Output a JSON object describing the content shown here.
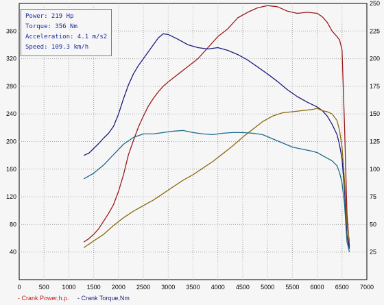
{
  "info": {
    "power": "Power: 219 Hp",
    "torque": "Torque: 356 Nm",
    "acceleration": "Acceleration: 4.1 m/s2",
    "speed": "Speed: 109.3 km/h"
  },
  "legend": {
    "power_label": "- Crank Power,h.p.",
    "torque_label": "- Crank Torque,Nm"
  },
  "chart_data": {
    "type": "line",
    "title": "",
    "xlabel": "",
    "ylabel": "",
    "xlim": [
      0,
      7000
    ],
    "ylim_left": [
      0,
      400
    ],
    "ylim_right": [
      0,
      250
    ],
    "x_ticks": [
      0,
      500,
      1000,
      1500,
      2000,
      2500,
      3000,
      3500,
      4000,
      4500,
      5000,
      5500,
      6000,
      6500,
      7000
    ],
    "y_ticks_left": [
      40,
      80,
      120,
      160,
      200,
      240,
      280,
      320,
      360
    ],
    "y_ticks_right": [
      25,
      50,
      75,
      100,
      125,
      150,
      175,
      200,
      225,
      250
    ],
    "grid": true,
    "legend_position": "bottom-left",
    "series": [
      {
        "name": "Crank Power,h.p.",
        "axis": "right",
        "color": "#9a1a1a",
        "x": [
          1300,
          1400,
          1500,
          1600,
          1700,
          1800,
          1900,
          2000,
          2100,
          2200,
          2300,
          2400,
          2500,
          2600,
          2700,
          2800,
          2900,
          3000,
          3200,
          3400,
          3600,
          3800,
          4000,
          4200,
          4400,
          4600,
          4800,
          5000,
          5200,
          5400,
          5600,
          5800,
          6000,
          6100,
          6200,
          6300,
          6400,
          6450,
          6500,
          6550,
          6600,
          6650
        ],
        "values": [
          34,
          37,
          41,
          46,
          53,
          60,
          68,
          80,
          95,
          113,
          126,
          138,
          148,
          157,
          164,
          170,
          175,
          179,
          186,
          193,
          200,
          210,
          220,
          227,
          237,
          242,
          246,
          248,
          247,
          243,
          241,
          242,
          241,
          238,
          233,
          225,
          220,
          217,
          208,
          140,
          60,
          30
        ]
      },
      {
        "name": "Crank Torque,Nm",
        "axis": "left",
        "color": "#1a1a80",
        "x": [
          1300,
          1400,
          1500,
          1600,
          1700,
          1800,
          1900,
          2000,
          2100,
          2200,
          2300,
          2400,
          2500,
          2600,
          2700,
          2800,
          2900,
          3000,
          3200,
          3400,
          3600,
          3800,
          4000,
          4200,
          4400,
          4600,
          4800,
          5000,
          5200,
          5400,
          5600,
          5800,
          6000,
          6100,
          6200,
          6300,
          6400,
          6450,
          6500,
          6550,
          6600,
          6650
        ],
        "values": [
          180,
          183,
          190,
          197,
          205,
          212,
          222,
          240,
          262,
          282,
          298,
          310,
          320,
          330,
          340,
          350,
          356,
          355,
          348,
          340,
          336,
          334,
          336,
          332,
          326,
          318,
          308,
          298,
          287,
          275,
          265,
          257,
          250,
          245,
          237,
          225,
          210,
          195,
          175,
          130,
          65,
          45
        ]
      },
      {
        "color": "#8a6a10",
        "axis": "right",
        "x": [
          1300,
          1500,
          1700,
          1900,
          2100,
          2300,
          2500,
          2700,
          2900,
          3100,
          3300,
          3500,
          3700,
          3900,
          4100,
          4300,
          4500,
          4700,
          4900,
          5100,
          5300,
          5500,
          5700,
          5900,
          6000,
          6100,
          6200,
          6300,
          6400,
          6450,
          6500,
          6550,
          6600,
          6650
        ],
        "values": [
          29,
          35,
          41,
          49,
          56,
          62,
          67,
          72,
          78,
          84,
          90,
          95,
          101,
          107,
          114,
          121,
          129,
          136,
          143,
          148,
          151,
          152,
          153,
          154,
          155,
          153,
          152,
          150,
          144,
          135,
          120,
          90,
          50,
          35
        ]
      },
      {
        "color": "#1a6a8a",
        "axis": "left",
        "x": [
          1300,
          1500,
          1700,
          1900,
          2100,
          2300,
          2500,
          2700,
          2900,
          3100,
          3300,
          3500,
          3700,
          3900,
          4100,
          4300,
          4500,
          4700,
          4900,
          5100,
          5300,
          5500,
          5700,
          5900,
          6000,
          6100,
          6200,
          6300,
          6400,
          6450,
          6500,
          6550,
          6600,
          6650
        ],
        "values": [
          146,
          154,
          166,
          181,
          196,
          206,
          211,
          211,
          213,
          215,
          216,
          213,
          211,
          210,
          212,
          213,
          213,
          212,
          210,
          204,
          198,
          192,
          189,
          186,
          184,
          180,
          176,
          172,
          165,
          155,
          140,
          110,
          55,
          40
        ]
      }
    ]
  }
}
